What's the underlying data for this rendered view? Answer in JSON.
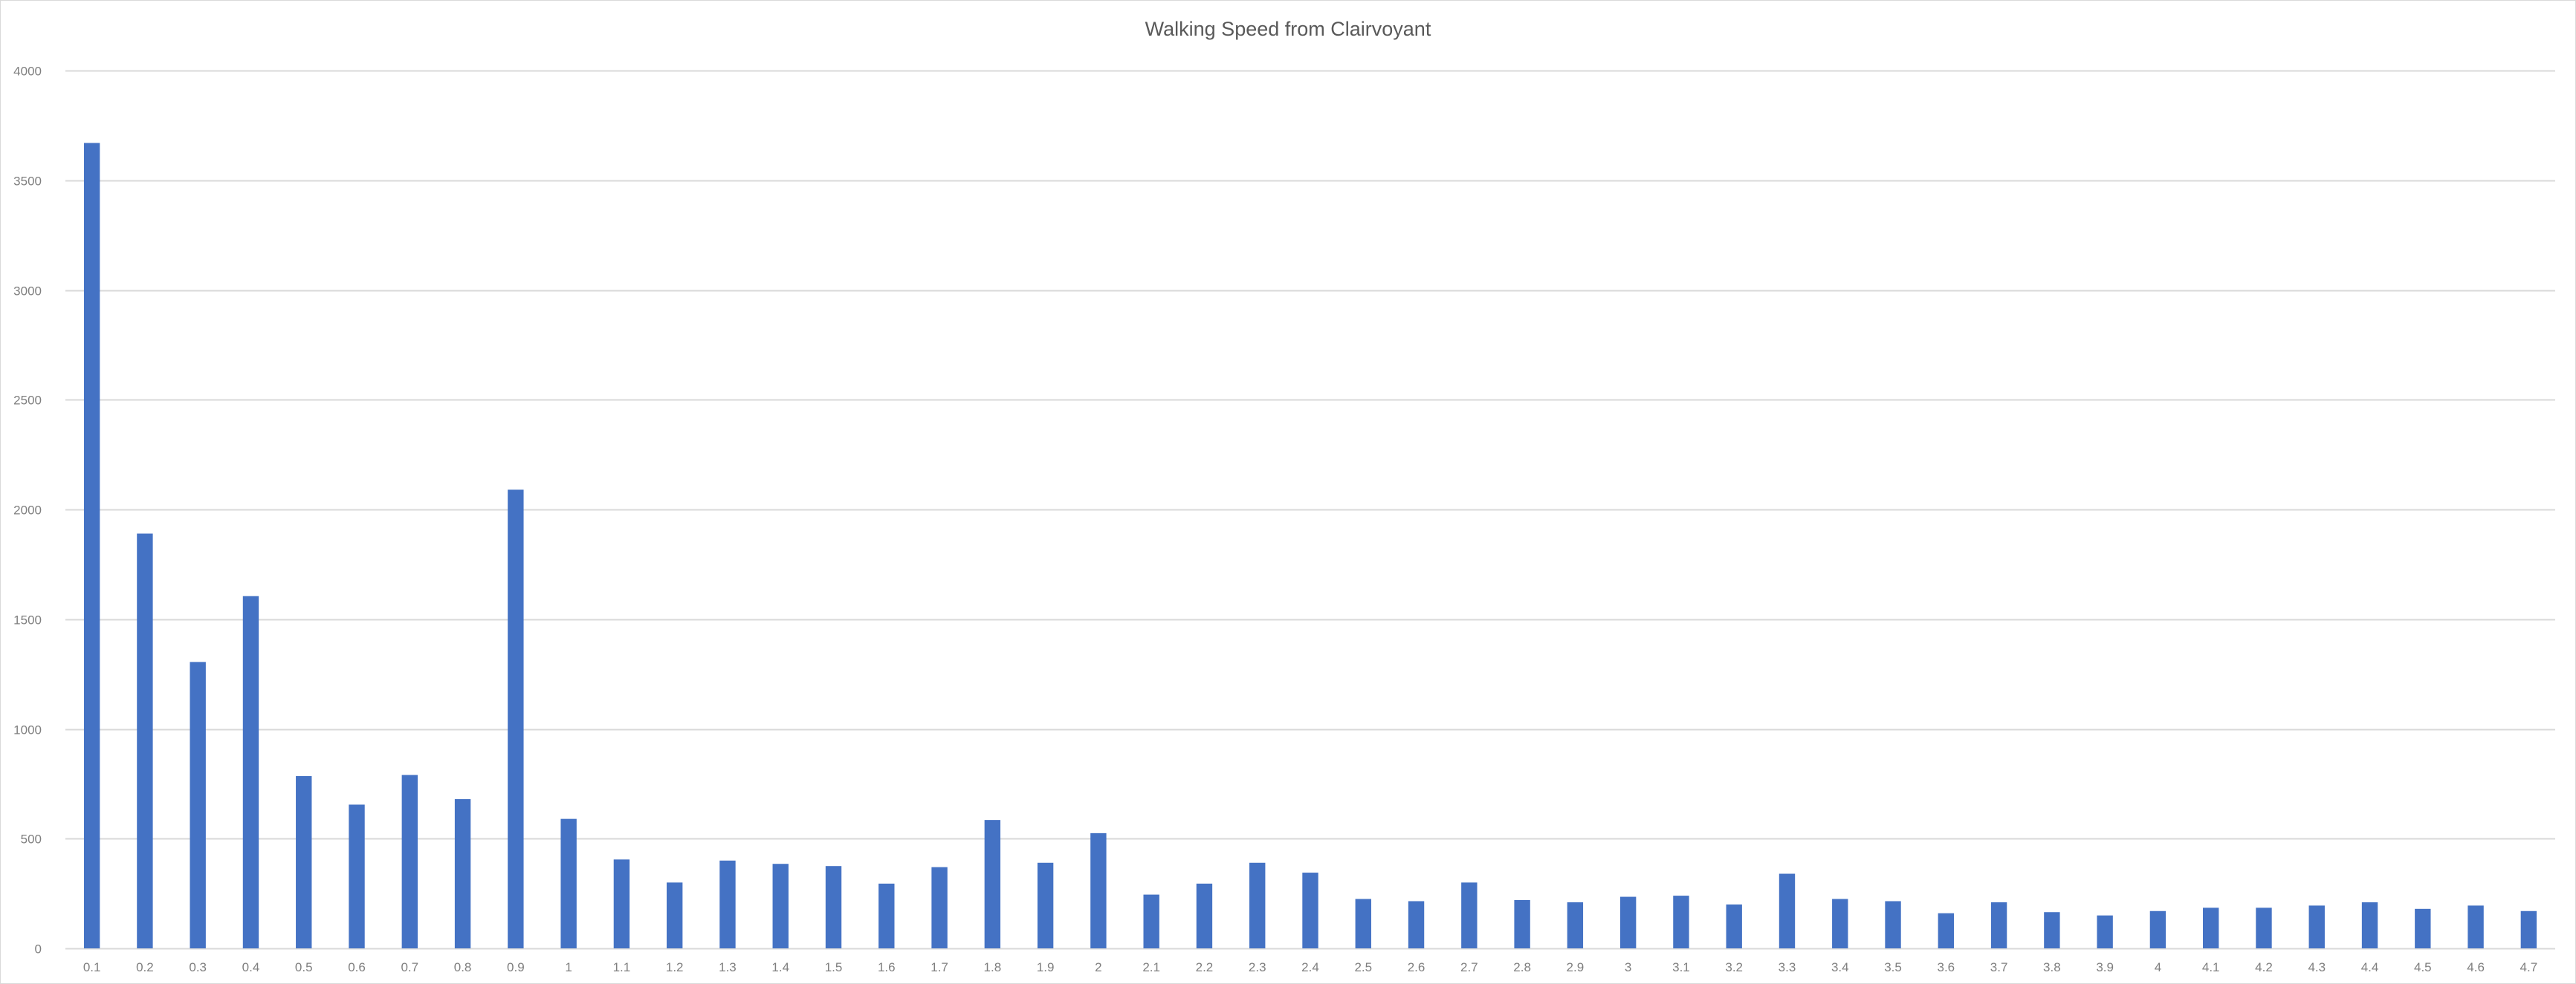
{
  "chart_data": {
    "type": "bar",
    "title": "Walking Speed from Clairvoyant",
    "xlabel": "",
    "ylabel": "",
    "ylim": [
      0,
      4000
    ],
    "yticks": [
      0,
      500,
      1000,
      1500,
      2000,
      2500,
      3000,
      3500,
      4000
    ],
    "grid": true,
    "legend": "none",
    "bar_color": "#4472c4",
    "grid_color": "#d9d9d9",
    "categories": [
      "0.1",
      "0.2",
      "0.3",
      "0.4",
      "0.5",
      "0.6",
      "0.7",
      "0.8",
      "0.9",
      "1",
      "1.1",
      "1.2",
      "1.3",
      "1.4",
      "1.5",
      "1.6",
      "1.7",
      "1.8",
      "1.9",
      "2",
      "2.1",
      "2.2",
      "2.3",
      "2.4",
      "2.5",
      "2.6",
      "2.7",
      "2.8",
      "2.9",
      "3",
      "3.1",
      "3.2",
      "3.3",
      "3.4",
      "3.5",
      "3.6",
      "3.7",
      "3.8",
      "3.9",
      "4",
      "4.1",
      "4.2",
      "4.3",
      "4.4",
      "4.5",
      "4.6",
      "4.7"
    ],
    "values": [
      3670,
      1890,
      1305,
      1605,
      785,
      655,
      790,
      680,
      2090,
      590,
      405,
      300,
      400,
      385,
      375,
      295,
      370,
      585,
      390,
      525,
      245,
      295,
      390,
      345,
      225,
      215,
      300,
      220,
      210,
      235,
      240,
      200,
      340,
      225,
      215,
      160,
      210,
      165,
      150,
      170,
      185,
      185,
      195,
      210,
      180,
      195,
      170
    ]
  }
}
